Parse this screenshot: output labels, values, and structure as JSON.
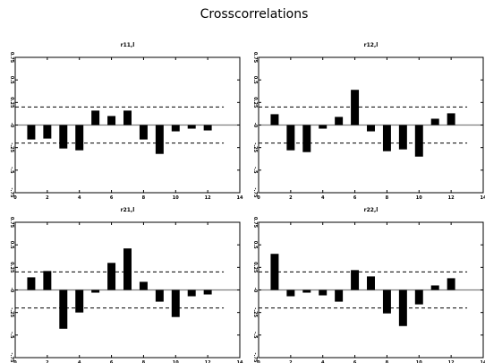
{
  "title": "Crosscorrelations",
  "chart_data": [
    {
      "type": "bar",
      "title": "r11,l",
      "x": [
        1,
        2,
        3,
        4,
        5,
        6,
        7,
        8,
        9,
        10,
        11,
        12
      ],
      "values": [
        -0.16,
        -0.15,
        -0.26,
        -0.28,
        0.16,
        0.1,
        0.16,
        -0.16,
        -0.32,
        -0.07,
        -0.04,
        -0.06
      ],
      "xlim": [
        0,
        14
      ],
      "ylim": [
        -0.75,
        0.75
      ],
      "xticks": [
        0,
        2,
        4,
        6,
        8,
        10,
        12,
        14
      ],
      "yticks": [
        -0.75,
        -0.5,
        -0.25,
        0,
        0.25,
        0.5,
        0.75
      ],
      "ytick_labels": [
        "-.75",
        "-.5",
        "-.25",
        "-0",
        "0.25",
        "0.5",
        "0.75"
      ],
      "reference_lines": [
        -0.2,
        0.2
      ]
    },
    {
      "type": "bar",
      "title": "r12,l",
      "x": [
        1,
        2,
        3,
        4,
        5,
        6,
        7,
        8,
        9,
        10,
        11,
        12
      ],
      "values": [
        0.12,
        -0.28,
        -0.3,
        -0.04,
        0.09,
        0.39,
        -0.07,
        -0.29,
        -0.27,
        -0.35,
        0.07,
        0.13
      ],
      "xlim": [
        0,
        14
      ],
      "ylim": [
        -0.75,
        0.75
      ],
      "xticks": [
        0,
        2,
        4,
        6,
        8,
        10,
        12,
        14
      ],
      "yticks": [
        -0.75,
        -0.5,
        -0.25,
        0,
        0.25,
        0.5,
        0.75
      ],
      "ytick_labels": [
        "-.75",
        "-.5",
        "-.25",
        "-0",
        "0.25",
        "0.5",
        "0.75"
      ],
      "reference_lines": [
        -0.2,
        0.2
      ]
    },
    {
      "type": "bar",
      "title": "r21,l",
      "x": [
        1,
        2,
        3,
        4,
        5,
        6,
        7,
        8,
        9,
        10,
        11,
        12
      ],
      "values": [
        0.14,
        0.21,
        -0.43,
        -0.25,
        -0.03,
        0.3,
        0.46,
        0.09,
        -0.13,
        -0.3,
        -0.07,
        -0.05
      ],
      "xlim": [
        0,
        14
      ],
      "ylim": [
        -0.75,
        0.75
      ],
      "xticks": [
        0,
        2,
        4,
        6,
        8,
        10,
        12,
        14
      ],
      "yticks": [
        -0.75,
        -0.5,
        -0.25,
        0,
        0.25,
        0.5,
        0.75
      ],
      "ytick_labels": [
        "-.75",
        "-.5",
        "-.25",
        "-0",
        "0.25",
        "0.5",
        "0.75"
      ],
      "reference_lines": [
        -0.2,
        0.2
      ]
    },
    {
      "type": "bar",
      "title": "r22,l",
      "x": [
        1,
        2,
        3,
        4,
        5,
        6,
        7,
        8,
        9,
        10,
        11,
        12
      ],
      "values": [
        0.4,
        -0.07,
        -0.03,
        -0.06,
        -0.13,
        0.22,
        0.15,
        -0.26,
        -0.4,
        -0.16,
        0.05,
        0.13
      ],
      "xlim": [
        0,
        14
      ],
      "ylim": [
        -0.75,
        0.75
      ],
      "xticks": [
        0,
        2,
        4,
        6,
        8,
        10,
        12,
        14
      ],
      "yticks": [
        -0.75,
        -0.5,
        -0.25,
        0,
        0.25,
        0.5,
        0.75
      ],
      "ytick_labels": [
        "-.75",
        "-.5",
        "-.25",
        "-0",
        "0.25",
        "0.5",
        "0.75"
      ],
      "reference_lines": [
        -0.2,
        0.2
      ]
    }
  ]
}
